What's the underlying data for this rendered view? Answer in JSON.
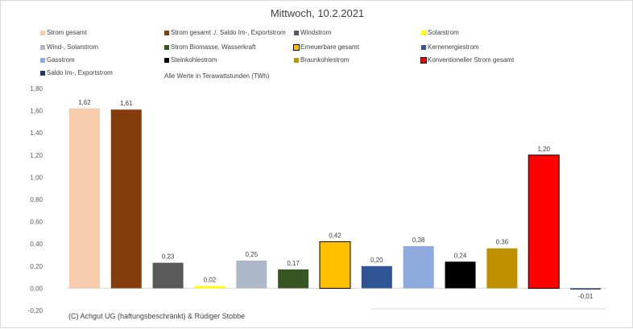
{
  "chart_data": {
    "type": "bar",
    "title": "Mittwoch,  10.2.2021",
    "subtitle": "Alle Werte in Terawattstunden (TWh)",
    "xlabel": "",
    "ylabel": "",
    "ylim": [
      -0.2,
      1.8
    ],
    "yticks": [
      -0.2,
      0.0,
      0.2,
      0.4,
      0.6,
      0.8,
      1.0,
      1.2,
      1.4,
      1.6,
      1.8
    ],
    "ytick_labels": [
      "-0,20",
      "0,00",
      "0,20",
      "0,40",
      "0,60",
      "0,80",
      "1,00",
      "1,20",
      "1,40",
      "1,60",
      "1,80"
    ],
    "grid": false,
    "legend_position": "top",
    "categories": [
      "Strom gesamt",
      "Strom gesamt ./. Saldo Im-, Exportstrom",
      "Windstrom",
      "Solarstrom",
      "Wind-, Solarstrom",
      "Strom Biomasse, Wasserkraft",
      "Erneuerbare gesamt",
      "Kernenergiestrom",
      "Gasstrom",
      "Steinkohlestrom",
      "Braunkohlestrom",
      "Konventioneller Strom gesamt",
      "Saldo Im-, Exportstrom"
    ],
    "values": [
      1.62,
      1.61,
      0.23,
      0.02,
      0.25,
      0.17,
      0.42,
      0.2,
      0.38,
      0.24,
      0.36,
      1.2,
      -0.01
    ],
    "value_labels": [
      "1,62",
      "1,61",
      "0,23",
      "0,02",
      "0,25",
      "0,17",
      "0,42",
      "0,20",
      "0,38",
      "0,24",
      "0,36",
      "1,20",
      "-0,01"
    ],
    "colors": [
      "#F8CBAD",
      "#843C0C",
      "#595959",
      "#FFFF00",
      "#ADB9CA",
      "#375623",
      "#FFC000",
      "#2F5597",
      "#8FAADC",
      "#000000",
      "#BF9000",
      "#FF0000",
      "#1F3864"
    ],
    "outlined": [
      false,
      false,
      false,
      false,
      false,
      false,
      true,
      false,
      false,
      false,
      false,
      true,
      false
    ],
    "legend": [
      {
        "label": "Strom gesamt",
        "color": "#F8CBAD"
      },
      {
        "label": "Strom gesamt ./. Saldo Im-, Exportstrom",
        "color": "#843C0C"
      },
      {
        "label": "Windstrom",
        "color": "#595959"
      },
      {
        "label": "Solarstrom",
        "color": "#FFFF00"
      },
      {
        "label": "Wind-, Solarstrom",
        "color": "#ADB9CA"
      },
      {
        "label": "Strom Biomasse, Wasserkraft",
        "color": "#375623"
      },
      {
        "label": "Erneuerbare gesamt",
        "color": "#FFC000"
      },
      {
        "label": "Kernenergiestrom",
        "color": "#2F5597"
      },
      {
        "label": "Gasstrom",
        "color": "#8FAADC"
      },
      {
        "label": "Steinkohlestrom",
        "color": "#000000"
      },
      {
        "label": "Braunkohlestrom",
        "color": "#BF9000"
      },
      {
        "label": "Konventioneller Strom gesamt",
        "color": "#FF0000"
      },
      {
        "label": "Saldo Im-, Exportstrom",
        "color": "#1F3864"
      }
    ]
  },
  "footer": {
    "copyright": "(C) Achgut UG (haftungsbeschränkt) & Rüdiger Stobbe"
  }
}
